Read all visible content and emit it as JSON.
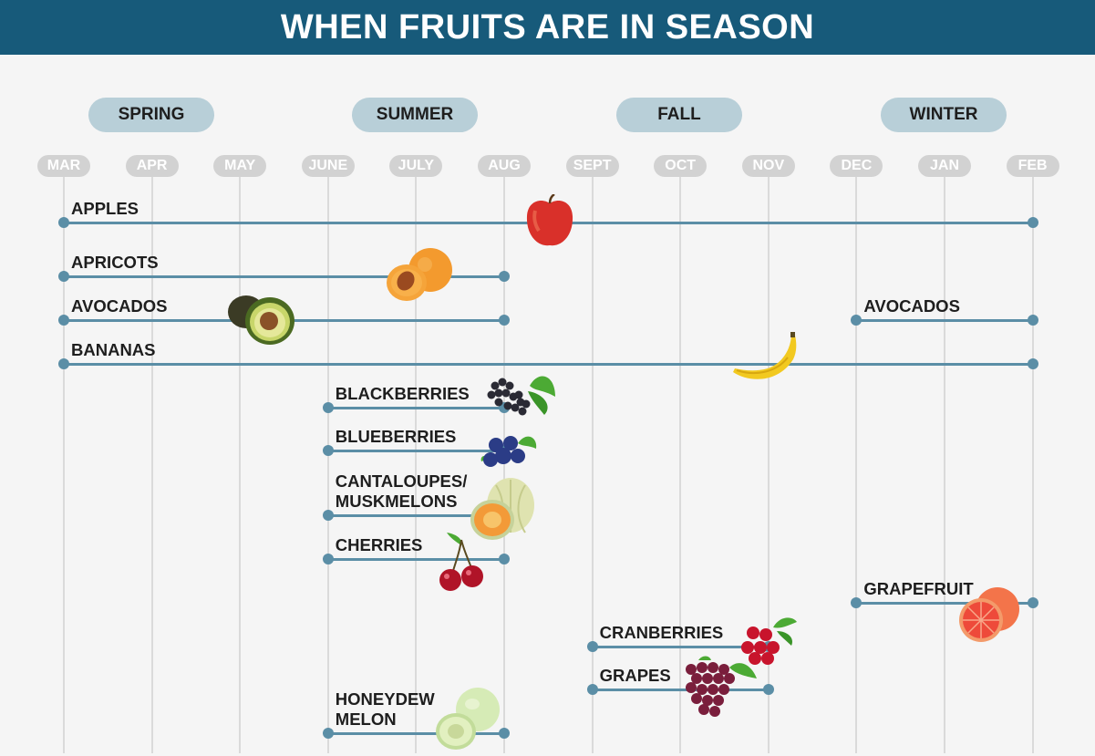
{
  "title": "WHEN FRUITS ARE IN SEASON",
  "seasons": [
    "SPRING",
    "SUMMER",
    "FALL",
    "WINTER"
  ],
  "months": [
    "MAR",
    "APR",
    "MAY",
    "JUNE",
    "JULY",
    "AUG",
    "SEPT",
    "OCT",
    "NOV",
    "DEC",
    "JAN",
    "FEB"
  ],
  "colors": {
    "header": "#175a7a",
    "bar": "#5b8ea6",
    "season_pill": "#b8cfd8",
    "month_pill": "#d2d2d2"
  },
  "fruits": [
    {
      "label": "APPLES",
      "start": "MAR",
      "end": "FEB",
      "icon": "apple-icon"
    },
    {
      "label": "APRICOTS",
      "start": "MAR",
      "end": "AUG",
      "icon": "apricot-icon"
    },
    {
      "label": "AVOCADOS",
      "start": "MAR",
      "end": "AUG",
      "icon": "avocado-icon"
    },
    {
      "label": "AVOCADOS",
      "start": "DEC",
      "end": "FEB",
      "icon": ""
    },
    {
      "label": "BANANAS",
      "start": "MAR",
      "end": "FEB",
      "icon": "banana-icon"
    },
    {
      "label": "BLACKBERRIES",
      "start": "JUNE",
      "end": "AUG",
      "icon": "blackberry-icon"
    },
    {
      "label": "BLUEBERRIES",
      "start": "JUNE",
      "end": "AUG",
      "icon": "blueberry-icon"
    },
    {
      "label": "CANTALOUPES/\nMUSKMELONS",
      "start": "JUNE",
      "end": "AUG",
      "icon": "cantaloupe-icon"
    },
    {
      "label": "CHERRIES",
      "start": "JUNE",
      "end": "AUG",
      "icon": "cherry-icon"
    },
    {
      "label": "GRAPEFRUIT",
      "start": "DEC",
      "end": "FEB",
      "icon": "grapefruit-icon"
    },
    {
      "label": "CRANBERRIES",
      "start": "SEPT",
      "end": "NOV",
      "icon": "cranberry-icon"
    },
    {
      "label": "GRAPES",
      "start": "SEPT",
      "end": "NOV",
      "icon": "grapes-icon"
    },
    {
      "label": "HONEYDEW\nMELON",
      "start": "JUNE",
      "end": "AUG",
      "icon": "honeydew-icon"
    }
  ]
}
